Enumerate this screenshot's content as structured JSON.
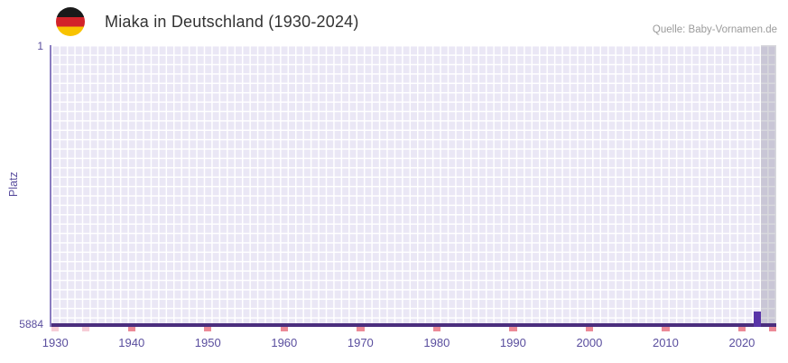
{
  "header": {
    "title": "Miaka in Deutschland (1930-2024)",
    "source": "Quelle: Baby-Vornamen.de"
  },
  "chart_data": {
    "type": "scatter",
    "title": "Miaka in Deutschland (1930-2024)",
    "xlabel": "",
    "ylabel": "Platz",
    "x_range": [
      1930,
      2024
    ],
    "y_range": [
      1,
      5884
    ],
    "y_axis_inverted": true,
    "x_ticks": [
      1930,
      1940,
      1950,
      1960,
      1970,
      1980,
      1990,
      2000,
      2010,
      2020
    ],
    "y_ticks": [
      "1",
      "5884"
    ],
    "grid": true,
    "legend": false,
    "points": [
      {
        "year": 2022,
        "rank": 5884
      }
    ],
    "highlight_band": {
      "from": 2023,
      "to": 2025
    },
    "axis_marks": [
      {
        "year": 1930,
        "shade": "light"
      },
      {
        "year": 1934,
        "shade": "light"
      },
      {
        "year": 1940,
        "shade": "strong"
      },
      {
        "year": 1950,
        "shade": "strong"
      },
      {
        "year": 1960,
        "shade": "strong"
      },
      {
        "year": 1970,
        "shade": "strong"
      },
      {
        "year": 1980,
        "shade": "strong"
      },
      {
        "year": 1990,
        "shade": "strong"
      },
      {
        "year": 2000,
        "shade": "strong"
      },
      {
        "year": 2010,
        "shade": "strong"
      },
      {
        "year": 2020,
        "shade": "strong"
      },
      {
        "year": 2024,
        "shade": "strong"
      }
    ],
    "colors": {
      "grid_cell": "#eae7f5",
      "baseline": "#4b2e7e",
      "point": "#5935a8",
      "mark_strong": "#ec8a97",
      "mark_light": "#f7cdd7",
      "axis_text": "#5a4e9e",
      "band": "rgba(115,115,132,0.28)",
      "title_text": "#333333",
      "source_text": "#9b9b9b"
    }
  }
}
